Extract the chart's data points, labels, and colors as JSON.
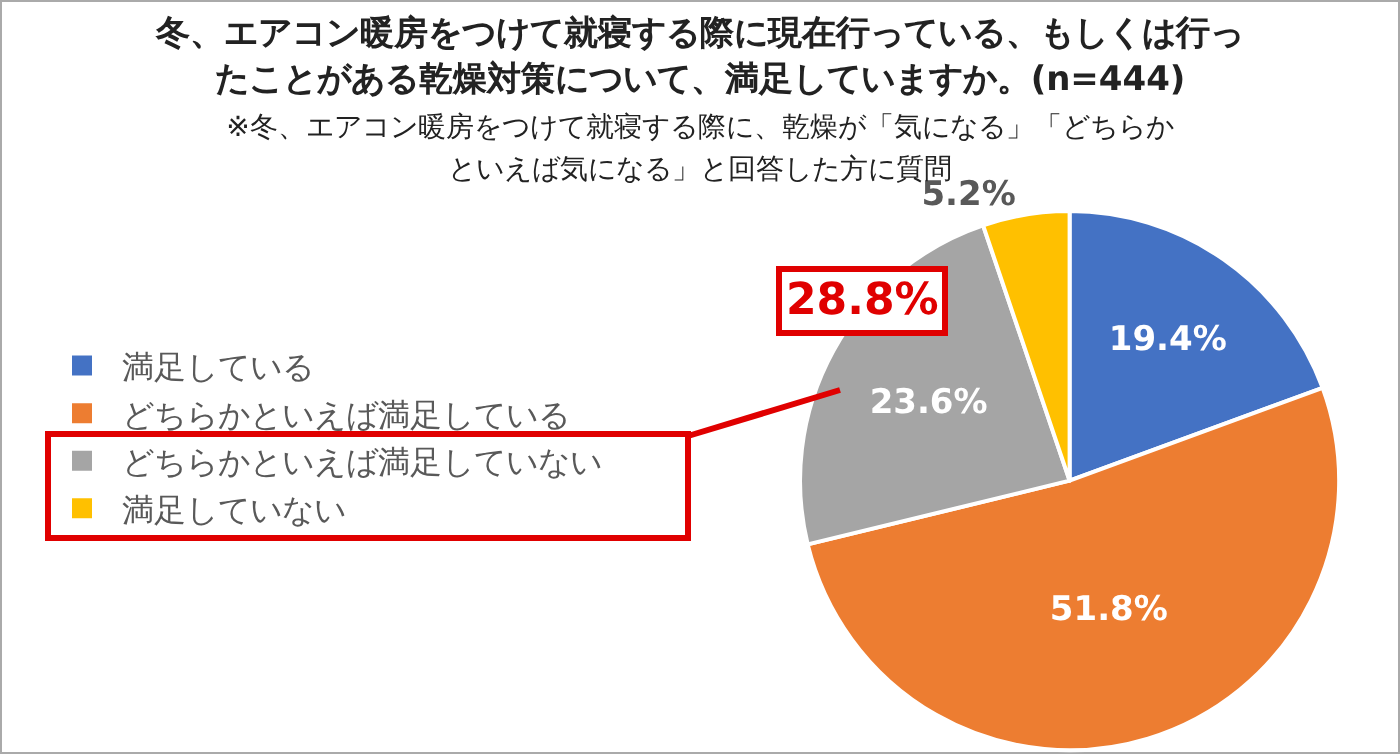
{
  "chart_data": {
    "type": "pie",
    "title": "冬、エアコン暖房をつけて就寝する際に現在行っている、もしくは行ったことがある乾燥対策について、満足していますか。(n=444)",
    "subtitle": "※冬、エアコン暖房をつけて就寝する際に、乾燥が「気になる」「どちらかといえば気になる」と回答した方に質問",
    "categories": [
      "満足している",
      "どちらかといえば満足している",
      "どちらかといえば満足していない",
      "満足していない"
    ],
    "values": [
      19.4,
      51.8,
      23.6,
      5.2
    ],
    "colors": [
      "#4472c4",
      "#ed7d31",
      "#a5a5a5",
      "#ffc000"
    ],
    "value_labels": [
      "19.4%",
      "51.8%",
      "23.6%",
      "5.2%"
    ],
    "legend": "left",
    "annotations": [
      "28.8%"
    ]
  }
}
